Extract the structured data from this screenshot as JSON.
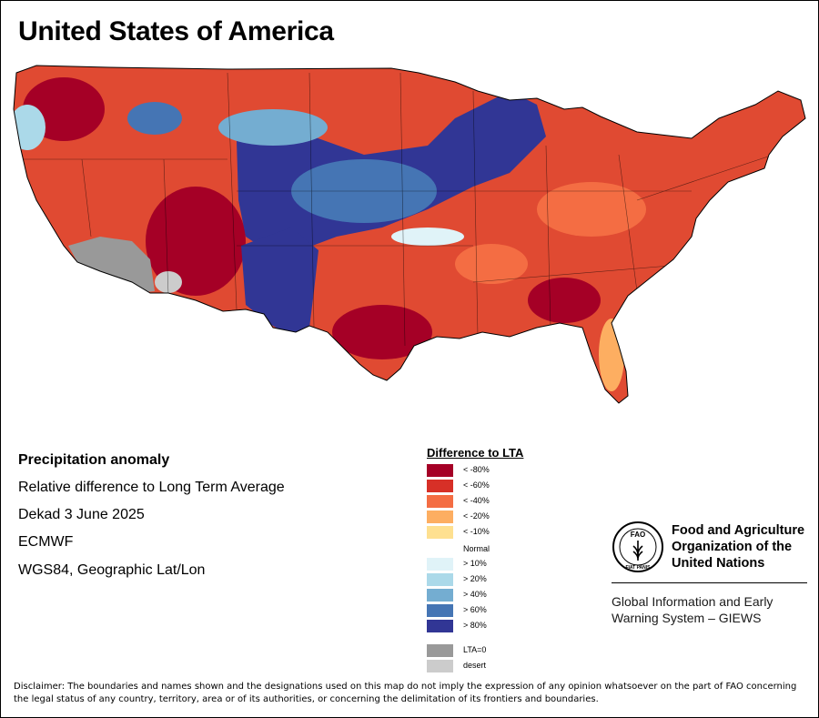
{
  "title": "United States of America",
  "info": {
    "heading": "Precipitation anomaly",
    "subtitle": "Relative difference to Long Term Average",
    "period": "Dekad 3 June 2025",
    "source": "ECMWF",
    "projection": "WGS84, Geographic Lat/Lon"
  },
  "legend": {
    "title": "Difference to LTA",
    "normal_label": "Normal",
    "items": [
      {
        "label": "< -80%",
        "color": "#a50026"
      },
      {
        "label": "< -60%",
        "color": "#d73027"
      },
      {
        "label": "< -40%",
        "color": "#f46d43"
      },
      {
        "label": "< -20%",
        "color": "#fdae61"
      },
      {
        "label": "< -10%",
        "color": "#fee090"
      },
      {
        "label": "> 10%",
        "color": "#e0f3f8"
      },
      {
        "label": "> 20%",
        "color": "#abd9e9"
      },
      {
        "label": "> 40%",
        "color": "#74add1"
      },
      {
        "label": "> 60%",
        "color": "#4575b4"
      },
      {
        "label": "> 80%",
        "color": "#313695"
      },
      {
        "label": "LTA=0",
        "color": "#999999"
      },
      {
        "label": "desert",
        "color": "#cccccc"
      }
    ]
  },
  "logo": {
    "org_name": "Food and Agriculture Organization of the United Nations",
    "logo_letters": "FAO",
    "logo_motto": "FIAT PANIS",
    "system_name": "Global Information and Early Warning System – GIEWS"
  },
  "disclaimer": "Disclaimer: The boundaries and names shown and the designations used on this map do not imply the expression of any opinion whatsoever on the part of FAO concerning the legal status of any country, territory, area or of its authorities, or concerning the delimitation of its frontiers and boundaries."
}
